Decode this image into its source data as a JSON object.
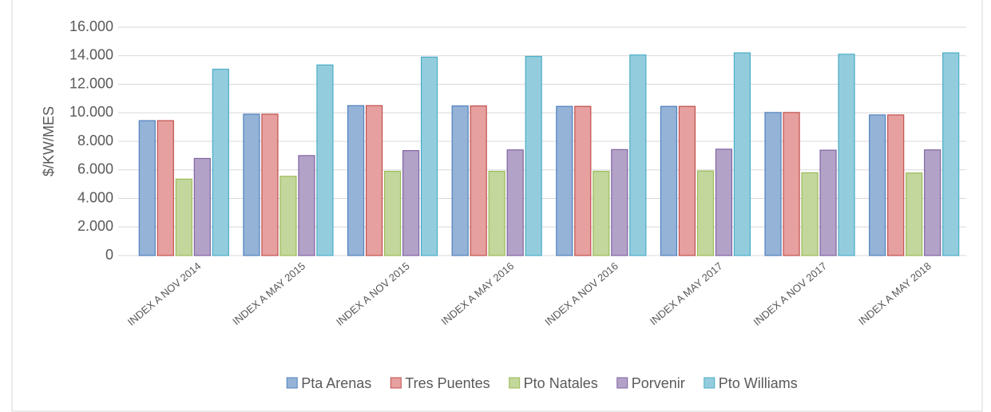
{
  "chart_data": {
    "type": "bar",
    "ylabel": "$/KW/MES",
    "categories": [
      "INDEX A NOV 2014",
      "INDEX A MAY 2015",
      "INDEX A NOV 2015",
      "INDEX A MAY 2016",
      "INDEX A NOV 2016",
      "INDEX A MAY 2017",
      "INDEX A NOV 2017",
      "INDEX A MAY 2018"
    ],
    "series": [
      {
        "name": "Pta Arenas",
        "color": "#95b3d7",
        "edgecolor": "#4f81bd",
        "values": [
          9450,
          9900,
          10500,
          10480,
          10450,
          10450,
          10020,
          9850
        ]
      },
      {
        "name": "Tres Puentes",
        "color": "#e6a09f",
        "edgecolor": "#c0504d",
        "values": [
          9450,
          9900,
          10500,
          10480,
          10450,
          10450,
          10020,
          9850
        ]
      },
      {
        "name": "Pto Natales",
        "color": "#c3d69b",
        "edgecolor": "#9bbb59",
        "values": [
          5350,
          5550,
          5900,
          5900,
          5900,
          5920,
          5800,
          5780
        ]
      },
      {
        "name": "Porvenir",
        "color": "#b3a2c7",
        "edgecolor": "#8064a2",
        "values": [
          6800,
          7000,
          7350,
          7400,
          7420,
          7450,
          7380,
          7400
        ]
      },
      {
        "name": "Pto Williams",
        "color": "#93cddd",
        "edgecolor": "#4bacc6",
        "values": [
          13050,
          13350,
          13900,
          13950,
          14050,
          14200,
          14100,
          14200
        ]
      }
    ],
    "ylim": [
      0,
      16000
    ],
    "yticks": [
      0,
      {
        "value": 2000,
        "label": "2.000"
      },
      {
        "value": 4000,
        "label": "4.000"
      },
      {
        "value": 6000,
        "label": "6.000"
      },
      {
        "value": 8000,
        "label": "8.000"
      },
      {
        "value": 10000,
        "label": "10.000"
      },
      {
        "value": 12000,
        "label": "12.000"
      },
      {
        "value": 14000,
        "label": "14.000"
      },
      {
        "value": 16000,
        "label": "16.000"
      }
    ],
    "grid": true,
    "legend": "bottom"
  }
}
